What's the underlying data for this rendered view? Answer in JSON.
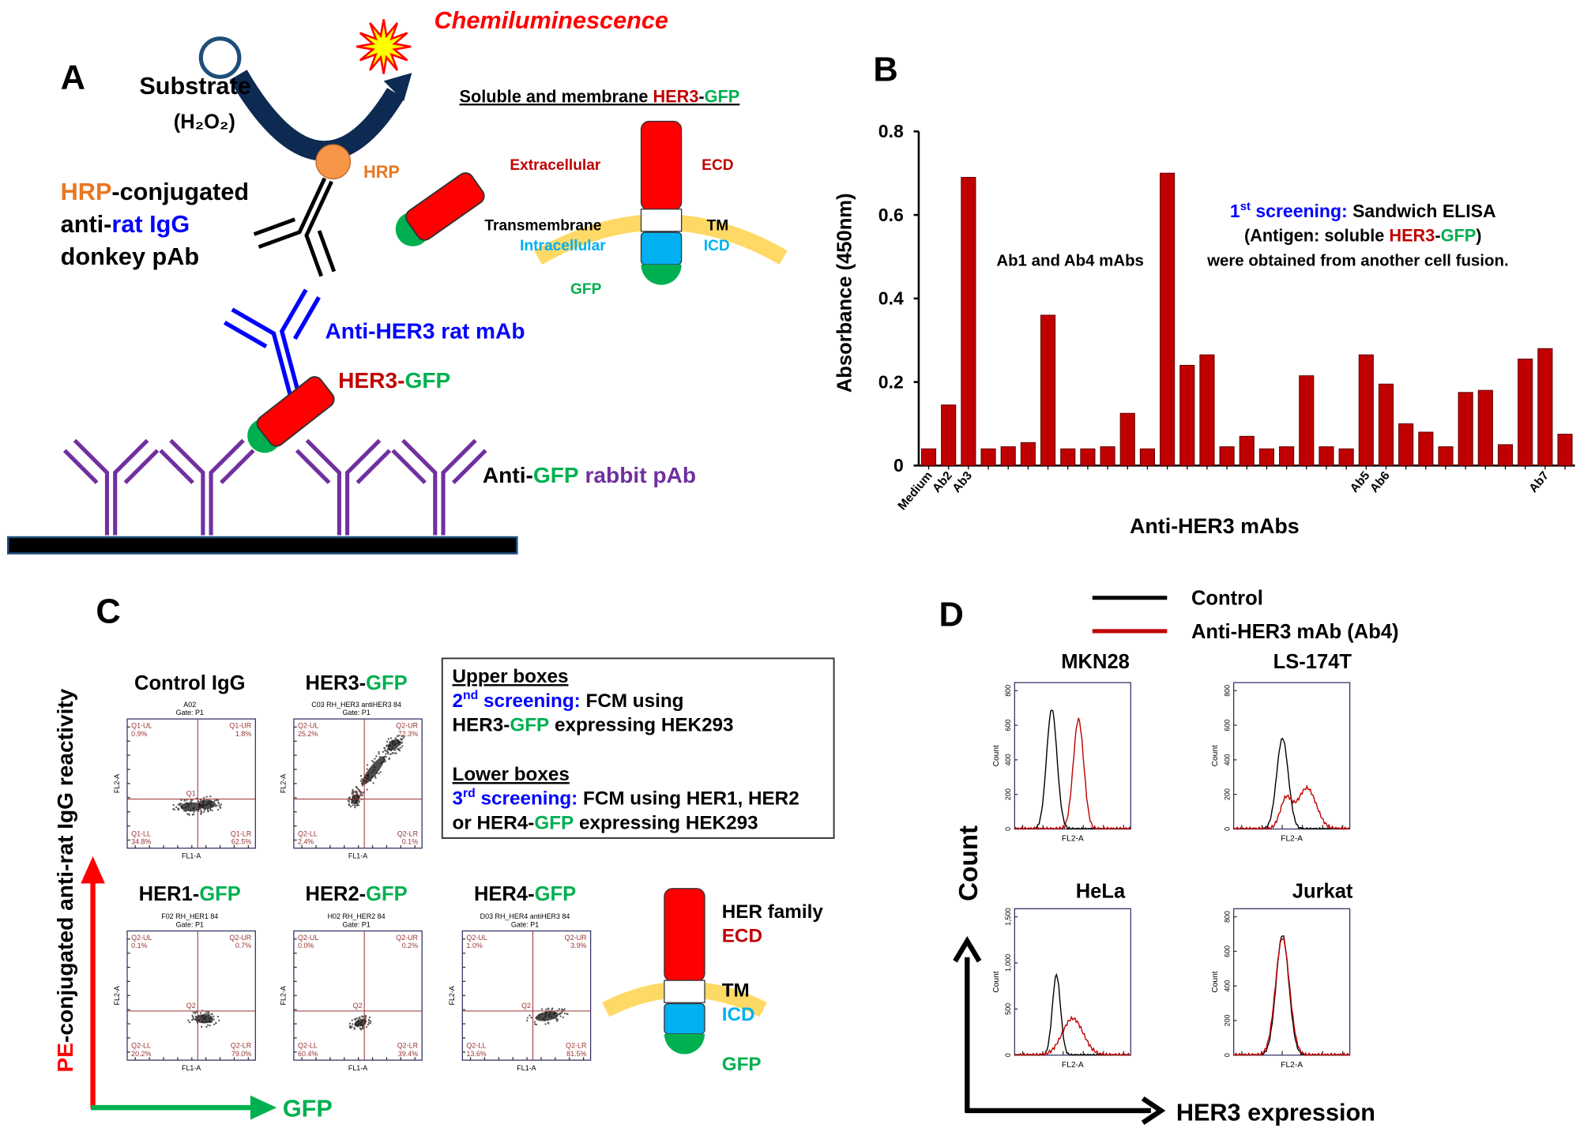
{
  "panel_a": {
    "label": "A",
    "chemiluminescence": "Chemiluminescence",
    "substrate": "Substrate",
    "h2o2": "(H₂O₂)",
    "hrp": "HRP",
    "secondary_ab": [
      [
        "HRP",
        "-conjugated"
      ],
      [
        "anti-",
        "rat IgG"
      ],
      [
        "donkey pAb"
      ]
    ],
    "primary_ab": "Anti-HER3 rat mAb",
    "antigen": [
      "HER3",
      "-",
      "GFP"
    ],
    "capture_ab": [
      "Anti-",
      "GFP",
      " rabbit pAb"
    ],
    "construct_title": [
      "Soluble and membrane ",
      "HER3",
      "-",
      "GFP"
    ],
    "domains": {
      "extracellular": "Extracellular",
      "ecd": "ECD",
      "transmembrane": "Transmembrane",
      "tm": "TM",
      "intracellular": "Intracellular",
      "icd": "ICD",
      "gfp": "GFP"
    }
  },
  "chart_data": {
    "type": "bar",
    "label": "B",
    "y_label": "Absorbance (450nm)",
    "x_label": "Anti-HER3 mAbs",
    "categories": [
      "Medium",
      "Ab2",
      "Ab3",
      null,
      null,
      null,
      null,
      null,
      null,
      null,
      null,
      null,
      null,
      null,
      null,
      null,
      null,
      null,
      null,
      null,
      null,
      null,
      "Ab5",
      "Ab6",
      null,
      null,
      null,
      null,
      null,
      null,
      null,
      "Ab7",
      null
    ],
    "values": [
      0.04,
      0.145,
      0.69,
      0.04,
      0.045,
      0.055,
      0.36,
      0.04,
      0.04,
      0.045,
      0.125,
      0.04,
      0.7,
      0.24,
      0.265,
      0.045,
      0.07,
      0.04,
      0.045,
      0.215,
      0.045,
      0.04,
      0.265,
      0.195,
      0.1,
      0.08,
      0.045,
      0.175,
      0.18,
      0.05,
      0.255,
      0.28,
      0.075
    ],
    "color": "#c00000",
    "ylim": [
      0,
      0.8
    ],
    "yticks": [
      0,
      0.2,
      0.4,
      0.6,
      0.8
    ],
    "annotations": {
      "fusion_note": [
        "Ab1 and Ab4 mAbs",
        "were obtained from another cell fusion."
      ],
      "screening": [
        "1",
        "st",
        " screening:",
        " Sandwich ELISA"
      ],
      "antigen": [
        "(Antigen: soluble ",
        "HER3",
        "-",
        "GFP",
        ")"
      ]
    }
  },
  "panel_c": {
    "label": "C",
    "y_axis": [
      "PE",
      "-conjugated anti-rat IgG reactivity"
    ],
    "x_axis": "GFP",
    "plots": [
      {
        "title": [
          "Control IgG"
        ],
        "sample": "A02",
        "gate": "Gate: P1",
        "center": "Q1",
        "quadrants": [
          [
            "Q1-UL",
            "0.9%"
          ],
          [
            "Q1-UR",
            "1.8%"
          ],
          [
            "Q1-LL",
            "34.8%"
          ],
          [
            "Q1-LR",
            "62.5%"
          ]
        ],
        "x_label": "FL1-A",
        "y_label": "FL2-A"
      },
      {
        "title": [
          "HER3-",
          "GFP"
        ],
        "sample": "C03 RH_HER3 antiHER3 84",
        "gate": "Gate: P1",
        "center": "Q2",
        "quadrants": [
          [
            "Q2-UL",
            "25.2%"
          ],
          [
            "Q2-UR",
            "72.3%"
          ],
          [
            "Q2-LL",
            "2.4%"
          ],
          [
            "Q2-LR",
            "0.1%"
          ]
        ],
        "x_label": "FL1-A",
        "y_label": "FL2-A"
      },
      {
        "title": [
          "HER1-",
          "GFP"
        ],
        "sample": "F02 RH_HER1 84",
        "gate": "Gate: P1",
        "center": "Q2",
        "quadrants": [
          [
            "Q2-UL",
            "0.1%"
          ],
          [
            "Q2-UR",
            "0.7%"
          ],
          [
            "Q2-LL",
            "20.2%"
          ],
          [
            "Q2-LR",
            "79.0%"
          ]
        ],
        "x_label": "FL1-A",
        "y_label": "FL2-A"
      },
      {
        "title": [
          "HER2-",
          "GFP"
        ],
        "sample": "H02 RH_HER2 84",
        "gate": "Gate: P1",
        "center": "Q2",
        "quadrants": [
          [
            "Q2-UL",
            "0.0%"
          ],
          [
            "Q2-UR",
            "0.2%"
          ],
          [
            "Q2-LL",
            "60.4%"
          ],
          [
            "Q2-LR",
            "39.4%"
          ]
        ],
        "x_label": "FL1-A",
        "y_label": "FL2-A"
      },
      {
        "title": [
          "HER4-",
          "GFP"
        ],
        "sample": "D03 RH_HER4 antiHER3 84",
        "gate": "Gate: P1",
        "center": "Q2",
        "quadrants": [
          [
            "Q2-UL",
            "1.0%"
          ],
          [
            "Q2-UR",
            "3.9%"
          ],
          [
            "Q2-LL",
            "13.6%"
          ],
          [
            "Q2-LR",
            "81.5%"
          ]
        ],
        "x_label": "FL1-A",
        "y_label": "FL2-A"
      }
    ],
    "box": {
      "upper_heading": "Upper boxes",
      "upper": [
        [
          "2",
          "nd",
          " screening:",
          " FCM using"
        ],
        [
          "HER3-",
          "GFP",
          " expressing HEK293"
        ]
      ],
      "lower_heading": "Lower boxes",
      "lower": [
        [
          "3",
          "rd",
          " screening:",
          " FCM using HER1, HER2"
        ],
        [
          "or HER4-",
          "GFP",
          " expressing HEK293"
        ]
      ]
    },
    "diagram": {
      "family": "HER family",
      "ecd": "ECD",
      "tm": "TM",
      "icd": "ICD",
      "gfp": "GFP"
    }
  },
  "panel_d": {
    "label": "D",
    "legend": [
      {
        "name": "Control",
        "color": "#000000"
      },
      {
        "name": "Anti-HER3 mAb (Ab4)",
        "color": "#c00000"
      }
    ],
    "y_axis": "Count",
    "x_axis": "HER3 expression",
    "plots": [
      {
        "title": "MKN28",
        "y_label": "Count",
        "x_label": "FL2-A",
        "yticks": [
          "0",
          "200",
          "400",
          "600",
          "800"
        ]
      },
      {
        "title": "LS-174T",
        "y_label": "Count",
        "x_label": "FL2-A",
        "yticks": [
          "0",
          "200",
          "400",
          "600",
          "800"
        ]
      },
      {
        "title": "HeLa",
        "y_label": "Count",
        "x_label": "FL2-A",
        "yticks": [
          "0",
          "500",
          "1,000",
          "1,500"
        ]
      },
      {
        "title": "Jurkat",
        "y_label": "Count",
        "x_label": "FL2-A",
        "yticks": [
          "0",
          "200",
          "400",
          "600",
          "800"
        ]
      }
    ]
  }
}
